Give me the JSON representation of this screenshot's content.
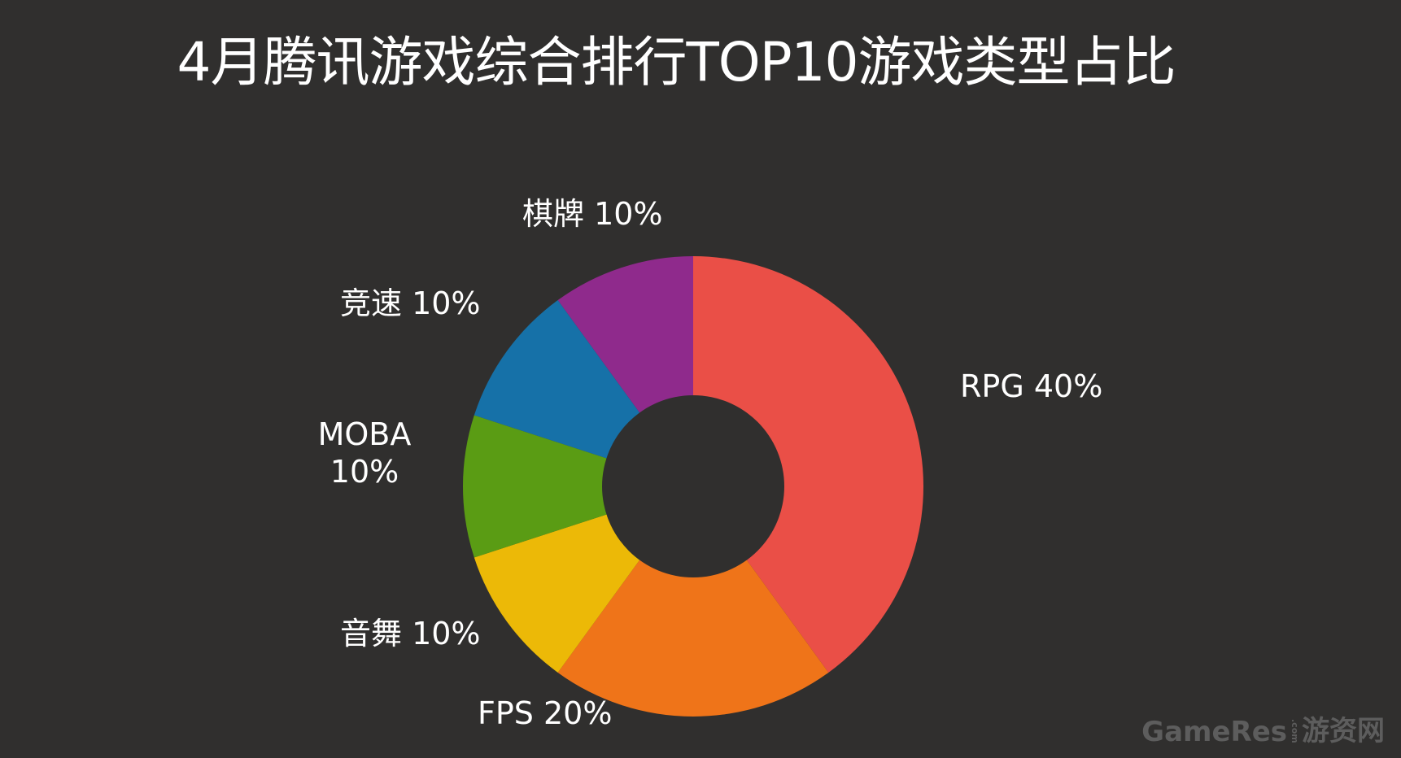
{
  "chart_data": {
    "type": "pie",
    "title": "4月腾讯游戏综合排行TOP10游戏类型占比",
    "donut": true,
    "start_angle_deg": 0,
    "direction": "clockwise",
    "slices": [
      {
        "name": "RPG",
        "value": 40,
        "label": "RPG 40%",
        "label_lines": [
          "RPG 40%"
        ],
        "color": "#ea4f47"
      },
      {
        "name": "FPS",
        "value": 20,
        "label": "FPS 20%",
        "label_lines": [
          "FPS 20%"
        ],
        "color": "#ef7419"
      },
      {
        "name": "音舞",
        "value": 10,
        "label": "音舞 10%",
        "label_lines": [
          "音舞 10%"
        ],
        "color": "#ecb907"
      },
      {
        "name": "MOBA",
        "value": 10,
        "label": "MOBA 10%",
        "label_lines": [
          "MOBA",
          "10%"
        ],
        "color": "#5a9c14"
      },
      {
        "name": "竞速",
        "value": 10,
        "label": "竞速 10%",
        "label_lines": [
          "竞速 10%"
        ],
        "color": "#1671a8"
      },
      {
        "name": "棋牌",
        "value": 10,
        "label": "棋牌 10%",
        "label_lines": [
          "棋牌 10%"
        ],
        "color": "#8f2a8c"
      }
    ]
  },
  "watermark": {
    "brand": "GameRes",
    "suffix": ".com",
    "cn": "游资网"
  }
}
